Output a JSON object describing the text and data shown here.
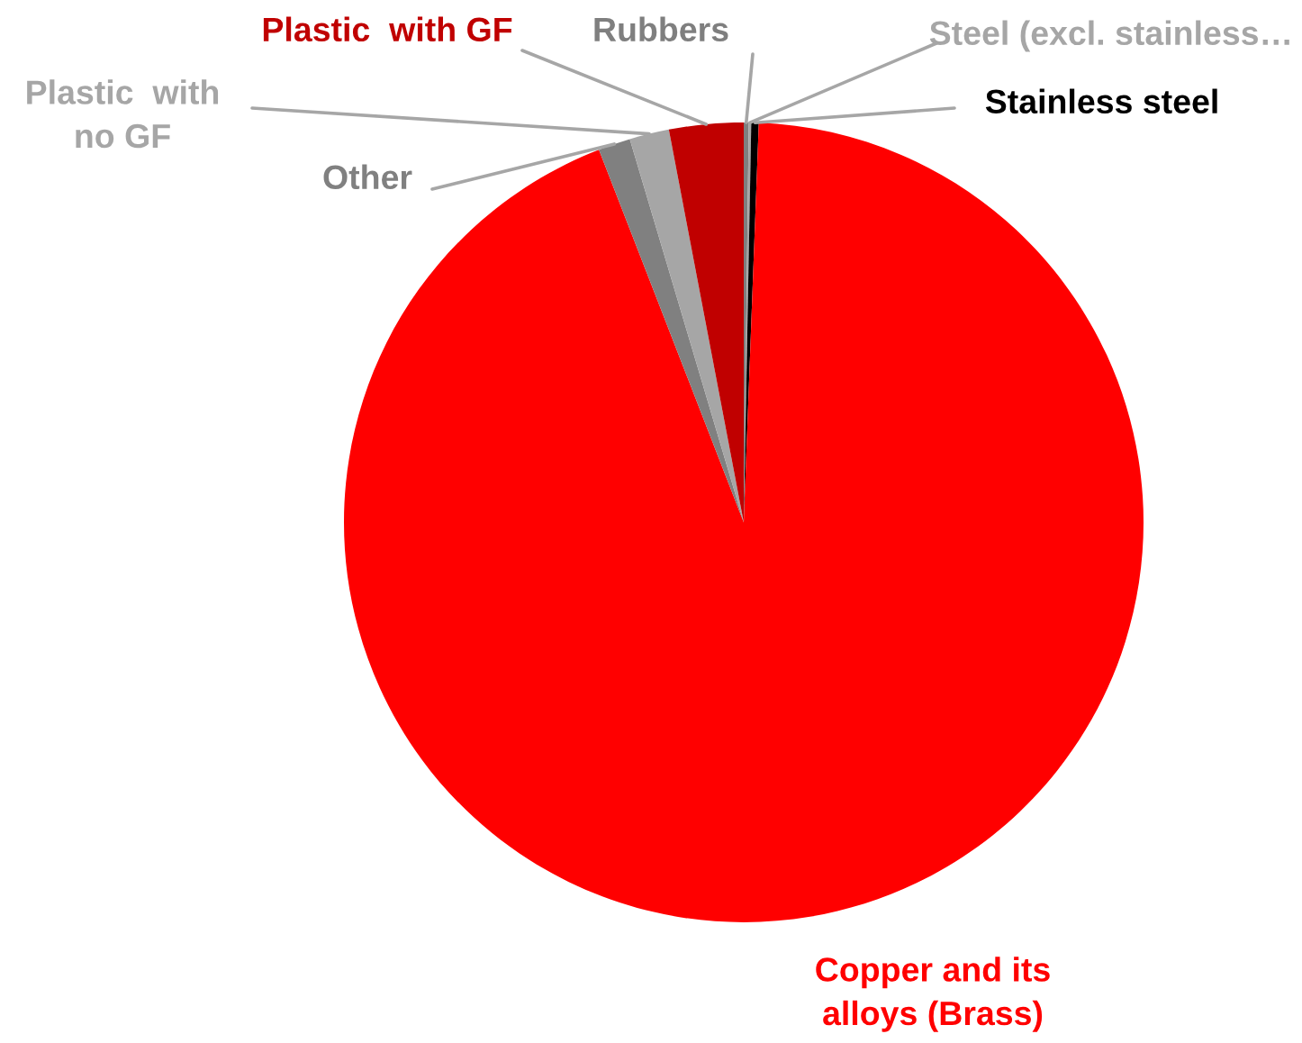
{
  "chart_data": {
    "type": "pie",
    "categories": [
      "Rubbers",
      "Steel (excl. stainless…",
      "Stainless steel",
      "Copper and its\nalloys (Brass)",
      "Other",
      "Plastic  with\nno GF",
      "Plastic  with GF"
    ],
    "values": [
      0.2,
      0.1,
      0.3,
      93.5,
      1.3,
      1.6,
      3.0
    ],
    "colors": [
      "#7f7f7f",
      "#a6a6a6",
      "#000000",
      "#ff0000",
      "#808080",
      "#a6a6a6",
      "#c00000"
    ],
    "legend": false
  }
}
